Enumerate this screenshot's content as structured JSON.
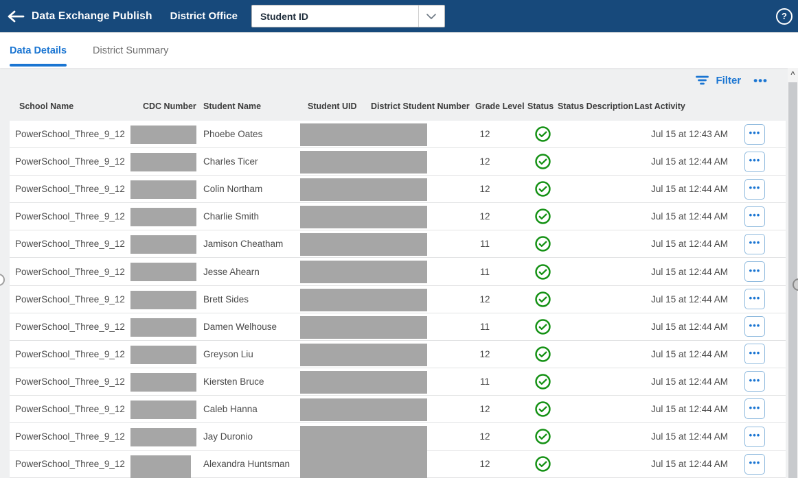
{
  "header": {
    "title": "Data Exchange Publish",
    "context": "District Office",
    "dropdown_value": "Student ID"
  },
  "icons": {
    "back": "arrow-left",
    "help": "?",
    "chevron_down": "chevron-down",
    "filter": "filter-lines",
    "ellipsis": "•••",
    "status_ok": "check-circle",
    "scroll_up": "^"
  },
  "tabs": [
    {
      "label": "Data Details",
      "active": true
    },
    {
      "label": "District Summary",
      "active": false
    }
  ],
  "toolbar": {
    "filter_label": "Filter",
    "overflow_label": "•••"
  },
  "colors": {
    "header_blue": "#17497b",
    "accent_blue": "#1a75d2",
    "success_green": "#149114",
    "redaction_gray": "#a6a6a6",
    "page_gray": "#eff0f1"
  },
  "table": {
    "columns": [
      "School Name",
      "CDC Number",
      "Student Name",
      "Student UID",
      "District Student Number",
      "Grade Level",
      "Status",
      "Status Description",
      "Last Activity"
    ],
    "rows": [
      {
        "school": "PowerSchool_Three_9_12",
        "student": "Phoebe Oates",
        "grade": "12",
        "status": "success",
        "status_description": "",
        "last_activity": "Jul 15 at 12:43 AM"
      },
      {
        "school": "PowerSchool_Three_9_12",
        "student": "Charles Ticer",
        "grade": "12",
        "status": "success",
        "status_description": "",
        "last_activity": "Jul 15 at 12:44 AM"
      },
      {
        "school": "PowerSchool_Three_9_12",
        "student": "Colin Northam",
        "grade": "12",
        "status": "success",
        "status_description": "",
        "last_activity": "Jul 15 at 12:44 AM"
      },
      {
        "school": "PowerSchool_Three_9_12",
        "student": "Charlie Smith",
        "grade": "12",
        "status": "success",
        "status_description": "",
        "last_activity": "Jul 15 at 12:44 AM"
      },
      {
        "school": "PowerSchool_Three_9_12",
        "student": "Jamison Cheatham",
        "grade": "11",
        "status": "success",
        "status_description": "",
        "last_activity": "Jul 15 at 12:44 AM"
      },
      {
        "school": "PowerSchool_Three_9_12",
        "student": "Jesse Ahearn",
        "grade": "11",
        "status": "success",
        "status_description": "",
        "last_activity": "Jul 15 at 12:44 AM"
      },
      {
        "school": "PowerSchool_Three_9_12",
        "student": "Brett Sides",
        "grade": "12",
        "status": "success",
        "status_description": "",
        "last_activity": "Jul 15 at 12:44 AM"
      },
      {
        "school": "PowerSchool_Three_9_12",
        "student": "Damen Welhouse",
        "grade": "11",
        "status": "success",
        "status_description": "",
        "last_activity": "Jul 15 at 12:44 AM"
      },
      {
        "school": "PowerSchool_Three_9_12",
        "student": "Greyson Liu",
        "grade": "12",
        "status": "success",
        "status_description": "",
        "last_activity": "Jul 15 at 12:44 AM"
      },
      {
        "school": "PowerSchool_Three_9_12",
        "student": "Kiersten Bruce",
        "grade": "11",
        "status": "success",
        "status_description": "",
        "last_activity": "Jul 15 at 12:44 AM"
      },
      {
        "school": "PowerSchool_Three_9_12",
        "student": "Caleb Hanna",
        "grade": "12",
        "status": "success",
        "status_description": "",
        "last_activity": "Jul 15 at 12:44 AM"
      },
      {
        "school": "PowerSchool_Three_9_12",
        "student": "Jay Duronio",
        "grade": "12",
        "status": "success",
        "status_description": "",
        "last_activity": "Jul 15 at 12:44 AM",
        "uid_h": 56
      },
      {
        "school": "PowerSchool_Three_9_12",
        "student": "Alexandra Huntsman",
        "grade": "12",
        "status": "success",
        "status_description": "",
        "last_activity": "Jul 15 at 12:44 AM",
        "cdc_w": 88,
        "cdc_h": 34,
        "uid_h": 50
      }
    ]
  }
}
